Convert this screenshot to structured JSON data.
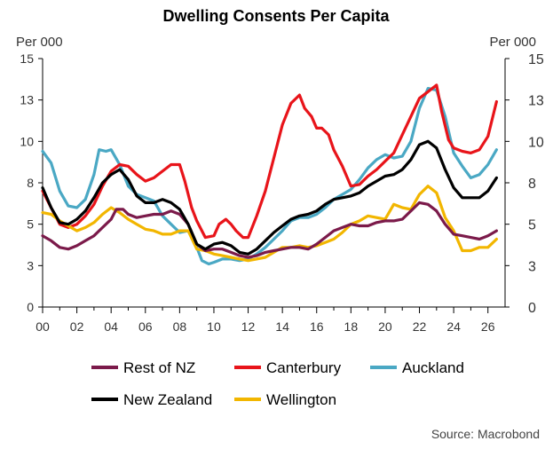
{
  "chart_data": {
    "type": "line",
    "title": "Dwelling Consents Per Capita",
    "left_unit": "Per 000",
    "right_unit": "Per 000",
    "source": "Source: Macrobond",
    "xlim": [
      2000,
      2027
    ],
    "ylim": [
      0,
      15
    ],
    "x_ticks": [
      2000,
      2002,
      2004,
      2006,
      2008,
      2010,
      2012,
      2014,
      2016,
      2018,
      2020,
      2022,
      2024,
      2026
    ],
    "x_tick_labels": [
      "00",
      "02",
      "04",
      "06",
      "08",
      "10",
      "12",
      "14",
      "16",
      "18",
      "20",
      "22",
      "24",
      "26"
    ],
    "y_ticks": [
      0,
      2.5,
      5,
      7.5,
      10,
      12.5,
      15
    ],
    "y_tick_labels": [
      "0",
      "3",
      "5",
      "8",
      "10",
      "13",
      "15"
    ],
    "grid": false,
    "legend_position": "bottom",
    "series": [
      {
        "name": "Rest of NZ",
        "color": "#7b1a4a",
        "x": [
          2000,
          2000.5,
          2001,
          2001.5,
          2002,
          2002.5,
          2003,
          2003.5,
          2004,
          2004.3,
          2004.7,
          2005,
          2005.5,
          2006,
          2006.5,
          2007,
          2007.5,
          2008,
          2008.5,
          2009,
          2009.5,
          2010,
          2010.5,
          2011,
          2011.5,
          2012,
          2012.5,
          2013,
          2013.5,
          2014,
          2014.5,
          2015,
          2015.5,
          2016,
          2016.5,
          2017,
          2017.5,
          2018,
          2018.5,
          2019,
          2019.5,
          2020,
          2020.5,
          2021,
          2021.5,
          2022,
          2022.5,
          2023,
          2023.5,
          2024,
          2024.5,
          2025,
          2025.5,
          2026,
          2026.5
        ],
        "y": [
          4.3,
          4.0,
          3.6,
          3.5,
          3.7,
          4.0,
          4.3,
          4.8,
          5.3,
          5.9,
          5.9,
          5.6,
          5.4,
          5.5,
          5.6,
          5.6,
          5.8,
          5.6,
          5.0,
          3.8,
          3.4,
          3.5,
          3.5,
          3.3,
          3.1,
          3.0,
          3.1,
          3.3,
          3.4,
          3.5,
          3.6,
          3.6,
          3.5,
          3.8,
          4.2,
          4.6,
          4.8,
          5.0,
          4.9,
          4.9,
          5.1,
          5.2,
          5.2,
          5.3,
          5.8,
          6.3,
          6.2,
          5.8,
          5.0,
          4.4,
          4.3,
          4.2,
          4.1,
          4.3,
          4.6
        ]
      },
      {
        "name": "Canterbury",
        "color": "#e8141a",
        "x": [
          2000,
          2000.5,
          2001,
          2001.5,
          2002,
          2002.5,
          2003,
          2003.5,
          2004,
          2004.5,
          2005,
          2005.5,
          2006,
          2006.5,
          2007,
          2007.5,
          2008,
          2008.3,
          2008.7,
          2009,
          2009.5,
          2010,
          2010.3,
          2010.7,
          2011,
          2011.3,
          2011.7,
          2012,
          2012.5,
          2013,
          2013.5,
          2014,
          2014.5,
          2015,
          2015.3,
          2015.7,
          2016,
          2016.3,
          2016.7,
          2017,
          2017.5,
          2018,
          2018.5,
          2019,
          2019.5,
          2020,
          2020.5,
          2021,
          2021.5,
          2022,
          2022.5,
          2023,
          2023.3,
          2023.7,
          2024,
          2024.5,
          2025,
          2025.5,
          2026,
          2026.5
        ],
        "y": [
          7.0,
          6.0,
          5.0,
          4.8,
          5.0,
          5.5,
          6.2,
          7.3,
          8.2,
          8.6,
          8.5,
          8.0,
          7.6,
          7.8,
          8.2,
          8.6,
          8.6,
          7.6,
          6.0,
          5.2,
          4.2,
          4.3,
          5.0,
          5.3,
          5.0,
          4.6,
          4.2,
          4.2,
          5.5,
          7.0,
          9.0,
          11.0,
          12.3,
          12.8,
          12.0,
          11.5,
          10.8,
          10.8,
          10.4,
          9.5,
          8.5,
          7.3,
          7.4,
          7.9,
          8.3,
          8.8,
          9.3,
          10.4,
          11.5,
          12.6,
          13.0,
          13.4,
          11.8,
          10.1,
          9.6,
          9.4,
          9.3,
          9.5,
          10.3,
          12.4
        ]
      },
      {
        "name": "Auckland",
        "color": "#4aa8c4",
        "x": [
          2000,
          2000.5,
          2001,
          2001.5,
          2002,
          2002.5,
          2003,
          2003.3,
          2003.7,
          2004,
          2004.5,
          2005,
          2005.5,
          2006,
          2006.5,
          2007,
          2007.5,
          2008,
          2008.5,
          2009,
          2009.3,
          2009.7,
          2010,
          2010.5,
          2011,
          2011.5,
          2012,
          2012.5,
          2013,
          2013.5,
          2014,
          2014.5,
          2015,
          2015.5,
          2016,
          2016.5,
          2017,
          2017.5,
          2018,
          2018.5,
          2019,
          2019.5,
          2020,
          2020.5,
          2021,
          2021.5,
          2022,
          2022.5,
          2023,
          2023.5,
          2024,
          2024.5,
          2025,
          2025.5,
          2026,
          2026.5
        ],
        "y": [
          9.4,
          8.7,
          7.0,
          6.1,
          6.0,
          6.5,
          8.0,
          9.5,
          9.4,
          9.5,
          8.6,
          7.3,
          6.8,
          6.6,
          6.4,
          5.5,
          5.0,
          4.5,
          4.6,
          3.6,
          2.8,
          2.6,
          2.7,
          2.9,
          2.9,
          2.8,
          2.9,
          3.2,
          3.6,
          4.1,
          4.6,
          5.2,
          5.4,
          5.4,
          5.6,
          6.0,
          6.5,
          6.8,
          7.1,
          7.7,
          8.4,
          8.9,
          9.2,
          9.0,
          9.1,
          10.0,
          12.0,
          13.2,
          13.1,
          11.5,
          9.3,
          8.5,
          7.8,
          8.0,
          8.6,
          9.5
        ]
      },
      {
        "name": "New Zealand",
        "color": "#000000",
        "x": [
          2000,
          2000.5,
          2001,
          2001.5,
          2002,
          2002.5,
          2003,
          2003.5,
          2004,
          2004.5,
          2005,
          2005.5,
          2006,
          2006.5,
          2007,
          2007.5,
          2008,
          2008.5,
          2009,
          2009.5,
          2010,
          2010.5,
          2011,
          2011.5,
          2012,
          2012.5,
          2013,
          2013.5,
          2014,
          2014.5,
          2015,
          2015.5,
          2016,
          2016.5,
          2017,
          2017.5,
          2018,
          2018.5,
          2019,
          2019.5,
          2020,
          2020.5,
          2021,
          2021.5,
          2022,
          2022.5,
          2023,
          2023.5,
          2024,
          2024.5,
          2025,
          2025.5,
          2026,
          2026.5
        ],
        "y": [
          7.2,
          6.0,
          5.1,
          5.0,
          5.3,
          5.8,
          6.6,
          7.5,
          8.0,
          8.3,
          7.7,
          6.7,
          6.3,
          6.3,
          6.5,
          6.3,
          5.9,
          5.0,
          3.8,
          3.5,
          3.8,
          3.9,
          3.7,
          3.3,
          3.2,
          3.5,
          4.0,
          4.5,
          4.9,
          5.3,
          5.5,
          5.6,
          5.8,
          6.2,
          6.5,
          6.6,
          6.7,
          6.9,
          7.3,
          7.6,
          7.9,
          8.0,
          8.3,
          8.9,
          9.8,
          10.0,
          9.6,
          8.3,
          7.2,
          6.6,
          6.6,
          6.6,
          7.0,
          7.8
        ]
      },
      {
        "name": "Wellington",
        "color": "#f2b600",
        "x": [
          2000,
          2000.5,
          2001,
          2001.5,
          2002,
          2002.5,
          2003,
          2003.5,
          2004,
          2004.5,
          2005,
          2005.5,
          2006,
          2006.5,
          2007,
          2007.5,
          2008,
          2008.5,
          2009,
          2009.5,
          2010,
          2010.5,
          2011,
          2011.5,
          2012,
          2012.5,
          2013,
          2013.5,
          2014,
          2014.5,
          2015,
          2015.5,
          2016,
          2016.5,
          2017,
          2017.5,
          2018,
          2018.5,
          2019,
          2019.5,
          2020,
          2020.5,
          2021,
          2021.5,
          2022,
          2022.5,
          2023,
          2023.5,
          2024,
          2024.5,
          2025,
          2025.5,
          2026,
          2026.5
        ],
        "y": [
          5.7,
          5.6,
          5.2,
          4.9,
          4.6,
          4.8,
          5.1,
          5.6,
          6.0,
          5.7,
          5.3,
          5.0,
          4.7,
          4.6,
          4.4,
          4.4,
          4.6,
          4.6,
          3.5,
          3.4,
          3.2,
          3.1,
          3.0,
          2.9,
          2.8,
          2.9,
          3.0,
          3.3,
          3.6,
          3.6,
          3.7,
          3.6,
          3.7,
          3.9,
          4.1,
          4.5,
          5.0,
          5.2,
          5.5,
          5.4,
          5.3,
          6.2,
          6.0,
          5.9,
          6.8,
          7.3,
          6.9,
          5.4,
          4.6,
          3.4,
          3.4,
          3.6,
          3.6,
          4.1
        ]
      }
    ]
  }
}
